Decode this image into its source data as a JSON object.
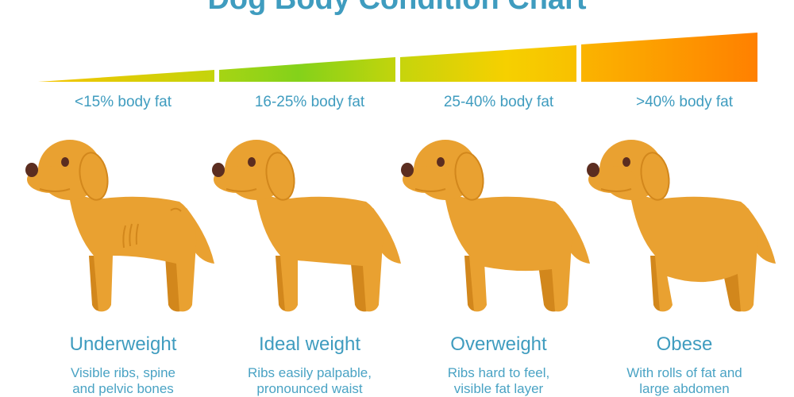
{
  "title": "Dog Body Condition Chart",
  "colors": {
    "text": "#3f9cbf",
    "dog_body": "#e9a131",
    "dog_shade": "#d2871c",
    "nose": "#5b2d20",
    "green": "#86d21a",
    "yellow": "#f6d000",
    "orange": "#ff8000"
  },
  "categories": [
    {
      "fat": "<15% body fat",
      "name": "Underweight",
      "desc1": "Visible ribs, spine",
      "desc2": "and pelvic bones"
    },
    {
      "fat": "16-25% body fat",
      "name": "Ideal weight",
      "desc1": "Ribs easily palpable,",
      "desc2": "pronounced waist"
    },
    {
      "fat": "25-40% body fat",
      "name": "Overweight",
      "desc1": "Ribs hard to feel,",
      "desc2": "visible fat layer"
    },
    {
      "fat": ">40% body fat",
      "name": "Obese",
      "desc1": "With rolls of fat and",
      "desc2": "large abdomen"
    }
  ]
}
